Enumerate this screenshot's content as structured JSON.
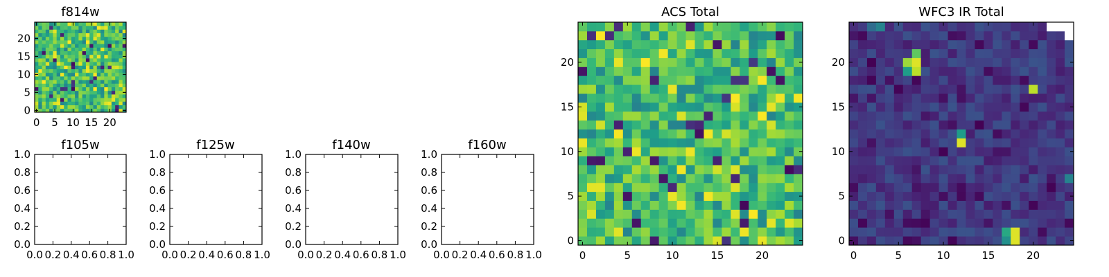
{
  "chart_data": [
    {
      "id": "f814w",
      "type": "heatmap",
      "title": "f814w",
      "colormap": "viridis",
      "xlim": [
        0,
        25
      ],
      "ylim": [
        0,
        25
      ],
      "xticks": [
        "0",
        "5",
        "10",
        "15",
        "20"
      ],
      "yticks": [
        "0",
        "5",
        "10",
        "15",
        "20"
      ],
      "grid_size": 25,
      "value_range": [
        0,
        1
      ],
      "field_style": "acs"
    },
    {
      "id": "f105w",
      "type": "heatmap",
      "title": "f105w",
      "xlim": [
        0,
        1
      ],
      "ylim": [
        0,
        1
      ],
      "xticks": [
        "0.0",
        "0.2",
        "0.4",
        "0.6",
        "0.8",
        "1.0"
      ],
      "yticks": [
        "0.0",
        "0.2",
        "0.4",
        "0.6",
        "0.8",
        "1.0"
      ],
      "empty": true
    },
    {
      "id": "f125w",
      "type": "heatmap",
      "title": "f125w",
      "xlim": [
        0,
        1
      ],
      "ylim": [
        0,
        1
      ],
      "xticks": [
        "0.0",
        "0.2",
        "0.4",
        "0.6",
        "0.8",
        "1.0"
      ],
      "yticks": [
        "0.0",
        "0.2",
        "0.4",
        "0.6",
        "0.8",
        "1.0"
      ],
      "empty": true
    },
    {
      "id": "f140w",
      "type": "heatmap",
      "title": "f140w",
      "xlim": [
        0,
        1
      ],
      "ylim": [
        0,
        1
      ],
      "xticks": [
        "0.0",
        "0.2",
        "0.4",
        "0.6",
        "0.8",
        "1.0"
      ],
      "yticks": [
        "0.0",
        "0.2",
        "0.4",
        "0.6",
        "0.8",
        "1.0"
      ],
      "empty": true
    },
    {
      "id": "f160w",
      "type": "heatmap",
      "title": "f160w",
      "xlim": [
        0,
        1
      ],
      "ylim": [
        0,
        1
      ],
      "xticks": [
        "0.0",
        "0.2",
        "0.4",
        "0.6",
        "0.8",
        "1.0"
      ],
      "yticks": [
        "0.0",
        "0.2",
        "0.4",
        "0.6",
        "0.8",
        "1.0"
      ],
      "empty": true
    },
    {
      "id": "acs-total",
      "type": "heatmap",
      "title": "ACS Total",
      "colormap": "viridis",
      "xlim": [
        0,
        25
      ],
      "ylim": [
        0,
        25
      ],
      "xticks": [
        "0",
        "5",
        "10",
        "15",
        "20"
      ],
      "yticks": [
        "0",
        "5",
        "10",
        "15",
        "20"
      ],
      "grid_size": 25,
      "value_range": [
        0,
        1
      ],
      "field_style": "acs"
    },
    {
      "id": "wfc3-ir-total",
      "type": "heatmap",
      "title": "WFC3 IR Total",
      "colormap": "viridis",
      "xlim": [
        0,
        25
      ],
      "ylim": [
        0,
        25
      ],
      "xticks": [
        "0",
        "5",
        "10",
        "15",
        "20"
      ],
      "yticks": [
        "0",
        "5",
        "10",
        "15",
        "20"
      ],
      "grid_size": 25,
      "value_range": [
        0,
        1
      ],
      "field_style": "ir",
      "bright_pixels": [
        {
          "x": 7,
          "y": 20,
          "value": 0.95
        },
        {
          "x": 6,
          "y": 20,
          "value": 0.85
        },
        {
          "x": 7,
          "y": 19,
          "value": 0.9
        },
        {
          "x": 6,
          "y": 19,
          "value": 0.55
        },
        {
          "x": 7,
          "y": 21,
          "value": 0.75
        },
        {
          "x": 20,
          "y": 17,
          "value": 0.9
        },
        {
          "x": 12,
          "y": 12,
          "value": 0.55
        },
        {
          "x": 12,
          "y": 11,
          "value": 0.95
        },
        {
          "x": 24,
          "y": 7,
          "value": 0.45
        },
        {
          "x": 18,
          "y": 1,
          "value": 0.95
        },
        {
          "x": 18,
          "y": 0,
          "value": 0.95
        },
        {
          "x": 17,
          "y": 1,
          "value": 0.6
        },
        {
          "x": 17,
          "y": 0,
          "value": 0.5
        },
        {
          "x": 3,
          "y": 24,
          "value": 0.45
        },
        {
          "x": 2,
          "y": 24,
          "value": 0.35
        }
      ],
      "masked_pixels": [
        {
          "x": 23,
          "y": 24
        },
        {
          "x": 24,
          "y": 24
        },
        {
          "x": 22,
          "y": 24
        },
        {
          "x": 24,
          "y": 23
        }
      ]
    }
  ]
}
